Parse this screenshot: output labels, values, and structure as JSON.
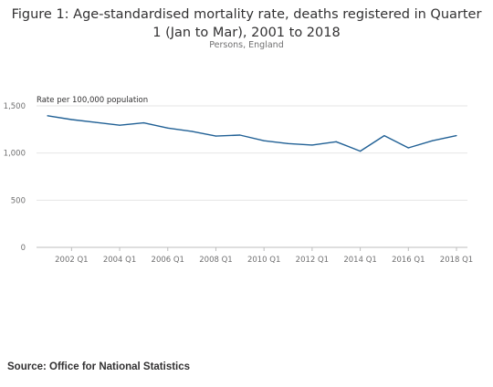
{
  "title": "Figure 1: Age-standardised mortality rate, deaths registered in Quarter 1 (Jan to Mar), 2001 to 2018",
  "subtitle": "Persons, England",
  "source": {
    "label": "Source:",
    "value": "Office for National Statistics"
  },
  "colors": {
    "line": "#206095",
    "grid": "#e6e6e6",
    "axis_text": "#707071"
  },
  "chart_data": {
    "type": "line",
    "title": "Figure 1: Age-standardised mortality rate, deaths registered in Quarter 1 (Jan to Mar), 2001 to 2018",
    "subtitle": "Persons, England",
    "ylabel": "Rate per 100,000 population",
    "xlabel": "",
    "ylim": [
      0,
      1500
    ],
    "yticks": [
      0,
      500,
      1000,
      1500
    ],
    "ytick_labels": [
      "0",
      "500",
      "1,000",
      "1,500"
    ],
    "grid": true,
    "x": [
      "2001 Q1",
      "2002 Q1",
      "2003 Q1",
      "2004 Q1",
      "2005 Q1",
      "2006 Q1",
      "2007 Q1",
      "2008 Q1",
      "2009 Q1",
      "2010 Q1",
      "2011 Q1",
      "2012 Q1",
      "2013 Q1",
      "2014 Q1",
      "2015 Q1",
      "2016 Q1",
      "2017 Q1",
      "2018 Q1"
    ],
    "xtick_labels": [
      "2002 Q1",
      "2004 Q1",
      "2006 Q1",
      "2008 Q1",
      "2010 Q1",
      "2012 Q1",
      "2014 Q1",
      "2016 Q1",
      "2018 Q1"
    ],
    "series": [
      {
        "values": [
          1395,
          1355,
          1325,
          1295,
          1320,
          1265,
          1230,
          1180,
          1190,
          1130,
          1100,
          1085,
          1120,
          1020,
          1185,
          1055,
          1130,
          1185
        ]
      }
    ]
  }
}
